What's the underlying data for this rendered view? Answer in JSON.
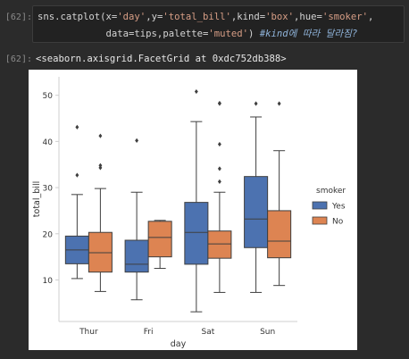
{
  "cell": {
    "in_prompt": "[62]:",
    "out_prompt": "[62]:",
    "code_line1_parts": [
      "sns.catplot(x=",
      "'day'",
      ",y=",
      "'total_bill'",
      ",kind=",
      "'box'",
      ",hue=",
      "'smoker'",
      ","
    ],
    "code_line2_parts": [
      "            data=tips,palette=",
      "'muted'",
      ") ",
      "#kind에 따라 달라짐?"
    ],
    "output_text": "<seaborn.axisgrid.FacetGrid at 0xdc752db388>"
  },
  "chart_data": {
    "type": "box",
    "xlabel": "day",
    "ylabel": "total_bill",
    "categories": [
      "Thur",
      "Fri",
      "Sat",
      "Sun"
    ],
    "yticks": [
      10,
      20,
      30,
      40,
      50
    ],
    "ylim": [
      1,
      54
    ],
    "grid": false,
    "legend": {
      "title": "smoker",
      "placement": "right"
    },
    "series": [
      {
        "name": "Yes",
        "color": "#4c72b0",
        "boxes": [
          {
            "whislo": 10.3,
            "q1": 13.5,
            "med": 16.5,
            "q3": 19.5,
            "whishi": 28.5,
            "fliers": [
              32.7,
              43.1
            ]
          },
          {
            "whislo": 5.7,
            "q1": 11.7,
            "med": 13.4,
            "q3": 18.6,
            "whishi": 29.0,
            "fliers": [
              40.2
            ]
          },
          {
            "whislo": 3.1,
            "q1": 13.4,
            "med": 20.3,
            "q3": 26.8,
            "whishi": 44.3,
            "fliers": [
              50.8
            ]
          },
          {
            "whislo": 7.3,
            "q1": 17.0,
            "med": 23.2,
            "q3": 32.4,
            "whishi": 45.3,
            "fliers": [
              48.2
            ]
          }
        ]
      },
      {
        "name": "No",
        "color": "#dd8452",
        "boxes": [
          {
            "whislo": 7.5,
            "q1": 11.7,
            "med": 15.9,
            "q3": 20.3,
            "whishi": 29.8,
            "fliers": [
              34.3,
              34.8,
              41.2
            ]
          },
          {
            "whislo": 12.5,
            "q1": 15.0,
            "med": 19.2,
            "q3": 22.7,
            "whishi": 22.9,
            "fliers": []
          },
          {
            "whislo": 7.3,
            "q1": 14.7,
            "med": 17.8,
            "q3": 20.6,
            "whishi": 29.0,
            "fliers": [
              31.3,
              34.1,
              39.4,
              48.2,
              48.3
            ]
          },
          {
            "whislo": 8.8,
            "q1": 14.8,
            "med": 18.4,
            "q3": 25.0,
            "whishi": 38.0,
            "fliers": [
              48.2
            ]
          }
        ]
      }
    ]
  }
}
